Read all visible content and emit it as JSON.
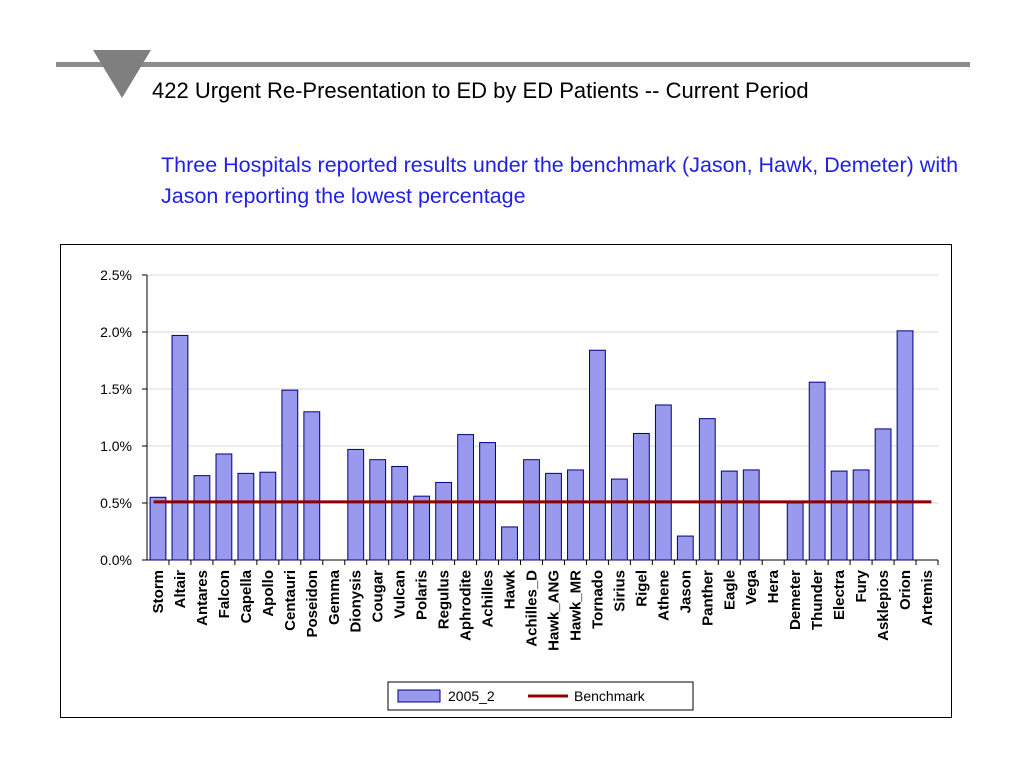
{
  "slide": {
    "title": "422 Urgent Re-Presentation to ED by ED Patients -- Current Period",
    "subtitle": "Three Hospitals reported results under the benchmark (Jason, Hawk, Demeter) with Jason reporting the lowest percentage"
  },
  "colors": {
    "bar_fill": "#9999ee",
    "bar_stroke": "#000080",
    "benchmark_line": "#8b0000",
    "subtitle_text": "#1f1fe6",
    "header_rule": "#8c8c8c"
  },
  "chart_data": {
    "type": "bar",
    "categories": [
      "Storm",
      "Altair",
      "Antares",
      "Falcon",
      "Capella",
      "Apollo",
      "Centauri",
      "Poseidon",
      "Gemma",
      "Dionysis",
      "Cougar",
      "Vulcan",
      "Polaris",
      "Regulus",
      "Aphrodite",
      "Achilles",
      "Hawk",
      "Achilles_D",
      "Hawk_ANG",
      "Hawk_MR",
      "Tornado",
      "Sirius",
      "Rigel",
      "Athene",
      "Jason",
      "Panther",
      "Eagle",
      "Vega",
      "Hera",
      "Demeter",
      "Thunder",
      "Electra",
      "Fury",
      "Asklepios",
      "Orion",
      "Artemis"
    ],
    "series": [
      {
        "name": "2005_2",
        "kind": "bar",
        "values": [
          0.0055,
          0.0197,
          0.0074,
          0.0093,
          0.0076,
          0.0077,
          0.0149,
          0.013,
          null,
          0.0097,
          0.0088,
          0.0082,
          0.0056,
          0.0068,
          0.011,
          0.0103,
          0.0029,
          0.0088,
          0.0076,
          0.0079,
          0.0184,
          0.0071,
          0.0111,
          0.0136,
          0.0021,
          0.0124,
          0.0078,
          0.0079,
          null,
          0.005,
          0.0156,
          0.0078,
          0.0079,
          0.0115,
          0.0201,
          null
        ]
      },
      {
        "name": "Benchmark",
        "kind": "line",
        "value": 0.0051
      }
    ],
    "ylim": [
      0,
      0.025
    ],
    "yticks": [
      "0.0%",
      "0.5%",
      "1.0%",
      "1.5%",
      "2.0%",
      "2.5%"
    ],
    "grid": true,
    "legend": "bottom-center"
  }
}
